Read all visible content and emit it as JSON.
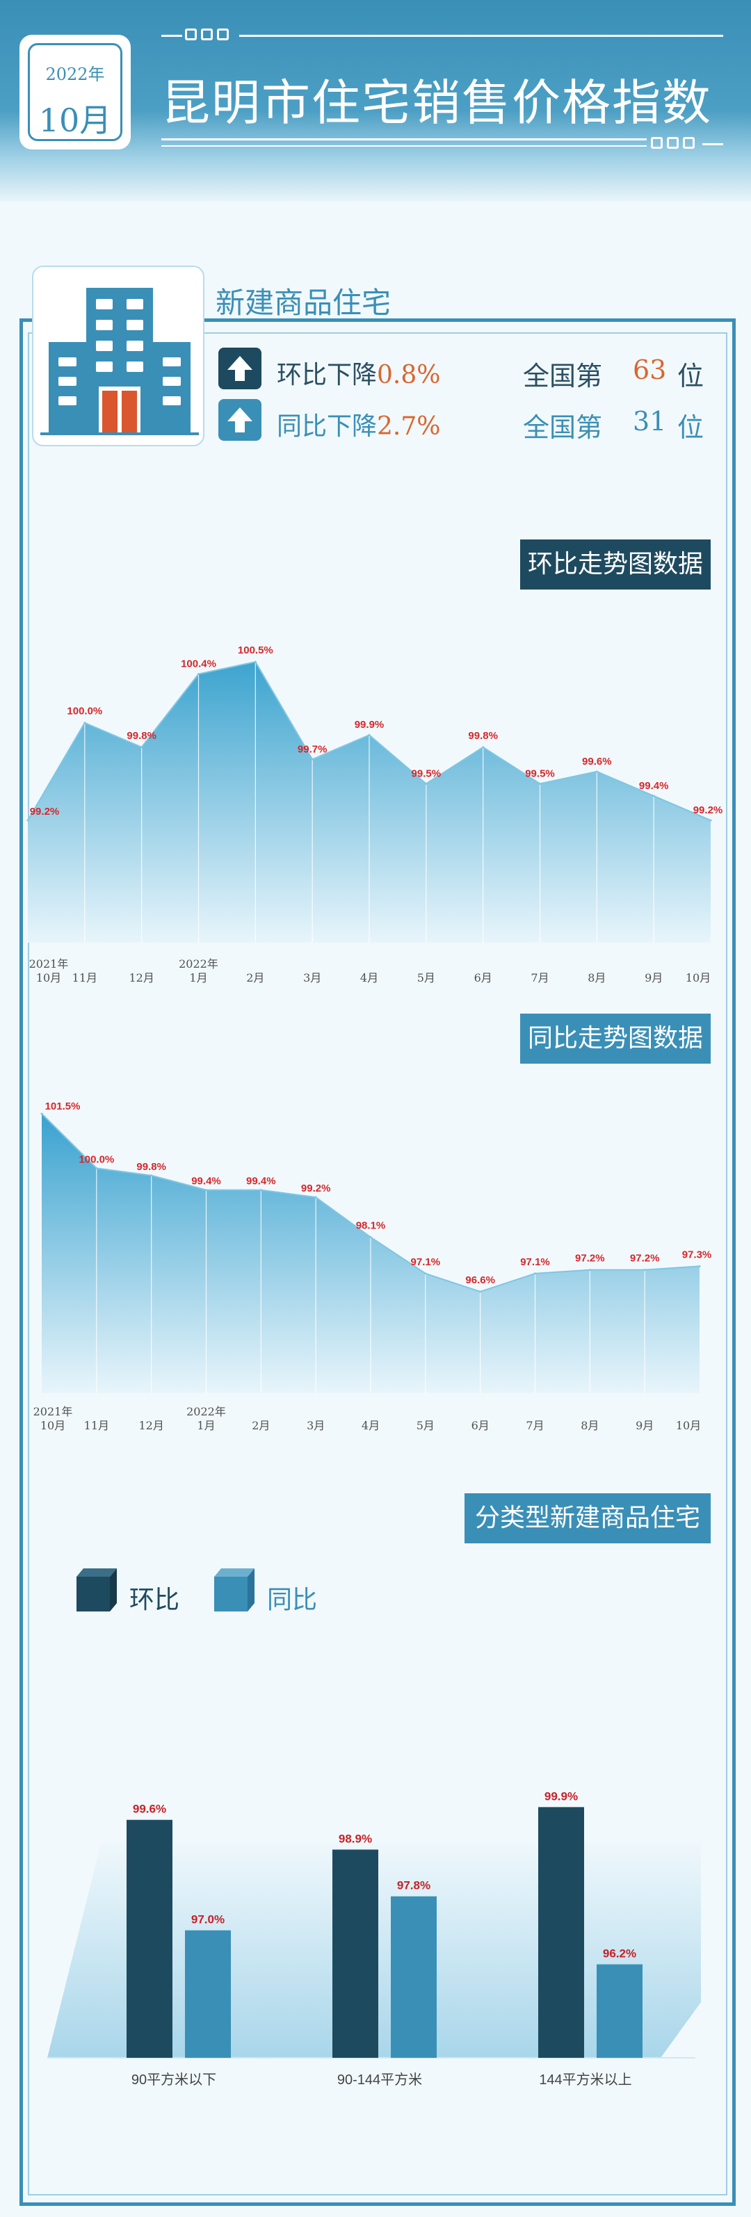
{
  "header": {
    "year": "2022年",
    "month": "10月",
    "title": "昆明市住宅销售价格指数"
  },
  "section": {
    "title": "新建商品住宅",
    "mom": {
      "label": "环比下降",
      "value": "0.8%",
      "rank_prefix": "全国第",
      "rank": "63",
      "rank_suffix": "位"
    },
    "yoy": {
      "label": "同比下降",
      "value": "2.7%",
      "rank_prefix": "全国第",
      "rank": "31",
      "rank_suffix": "位"
    }
  },
  "colors": {
    "primary": "#3a8fb7",
    "dark": "#1e4a5f",
    "accent": "#d9662e",
    "label_red": "#d6272b"
  },
  "chart_data": [
    {
      "type": "area",
      "title": "环比走势图数据",
      "categories": [
        [
          "2021年",
          "10月"
        ],
        [
          "11月"
        ],
        [
          "12月"
        ],
        [
          "2022年",
          "1月"
        ],
        [
          "2月"
        ],
        [
          "3月"
        ],
        [
          "4月"
        ],
        [
          "5月"
        ],
        [
          "6月"
        ],
        [
          "7月"
        ],
        [
          "8月"
        ],
        [
          "9月"
        ],
        [
          "10月"
        ]
      ],
      "values": [
        99.2,
        100.0,
        99.8,
        100.4,
        100.5,
        99.7,
        99.9,
        99.5,
        99.8,
        99.5,
        99.6,
        99.4,
        99.2
      ],
      "value_labels": [
        "99.2%",
        "100.0%",
        "99.8%",
        "100.4%",
        "100.5%",
        "99.7%",
        "99.9%",
        "99.5%",
        "99.8%",
        "99.5%",
        "99.6%",
        "99.4%",
        "99.2%"
      ]
    },
    {
      "type": "area",
      "title": "同比走势图数据",
      "categories": [
        [
          "2021年",
          "10月"
        ],
        [
          "11月"
        ],
        [
          "12月"
        ],
        [
          "2022年",
          "1月"
        ],
        [
          "2月"
        ],
        [
          "3月"
        ],
        [
          "4月"
        ],
        [
          "5月"
        ],
        [
          "6月"
        ],
        [
          "7月"
        ],
        [
          "8月"
        ],
        [
          "9月"
        ],
        [
          "10月"
        ]
      ],
      "values": [
        101.5,
        100.0,
        99.8,
        99.4,
        99.4,
        99.2,
        98.1,
        97.1,
        96.6,
        97.1,
        97.2,
        97.2,
        97.3
      ],
      "value_labels": [
        "101.5%",
        "100.0%",
        "99.8%",
        "99.4%",
        "99.4%",
        "99.2%",
        "98.1%",
        "97.1%",
        "96.6%",
        "97.1%",
        "97.2%",
        "97.2%",
        "97.3%"
      ]
    },
    {
      "type": "bar",
      "title": "分类型新建商品住宅",
      "categories": [
        "90平方米以下",
        "90-144平方米",
        "144平方米以上"
      ],
      "series": [
        {
          "name": "环比",
          "values": [
            99.6,
            98.9,
            99.9
          ],
          "value_labels": [
            "99.6%",
            "98.9%",
            "99.9%"
          ]
        },
        {
          "name": "同比",
          "values": [
            97.0,
            97.8,
            96.2
          ],
          "value_labels": [
            "97.0%",
            "97.8%",
            "96.2%"
          ]
        }
      ]
    }
  ]
}
